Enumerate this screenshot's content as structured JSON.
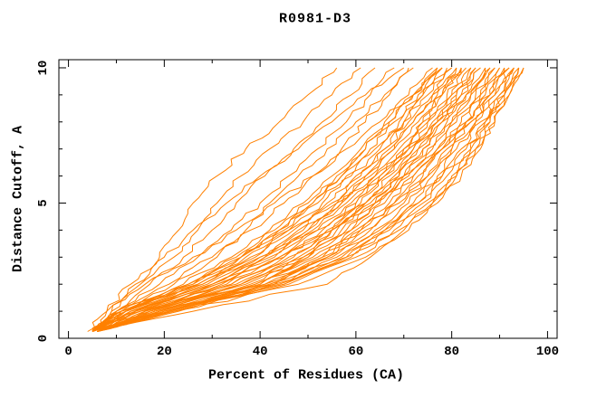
{
  "window": {
    "background": "#ffffff"
  },
  "chart_data": {
    "type": "line",
    "title": "R0981-D3",
    "xlabel": "Percent of Residues (CA)",
    "ylabel": "Distance Cutoff, A",
    "xlim": [
      -2,
      102
    ],
    "ylim": [
      0,
      10.3
    ],
    "x_major_ticks": [
      0,
      20,
      40,
      60,
      80,
      100
    ],
    "x_minor_ticks": [
      10,
      30,
      50,
      70,
      90
    ],
    "y_major_ticks": [
      0,
      5,
      10
    ],
    "y_minor_ticks": [
      1,
      2,
      3,
      4,
      6,
      7,
      8,
      9
    ],
    "grid": false,
    "legend": "none",
    "line_color": "#FF8000",
    "axis_color": "#000000",
    "cutoff_anchors": [
      0.25,
      1,
      2,
      3,
      4,
      5,
      6,
      7,
      8,
      9,
      10
    ],
    "curves_note": "Each curve lists Percent of Residues (CA) at each cutoff anchor above",
    "curves": [
      [
        5,
        10,
        24,
        34,
        42,
        49,
        55,
        61,
        66,
        71,
        76
      ],
      [
        5,
        10,
        25,
        35,
        43,
        50,
        56,
        62,
        67,
        72,
        77
      ],
      [
        5,
        11,
        25,
        36,
        44,
        51,
        57,
        62,
        67,
        72,
        77
      ],
      [
        5,
        11,
        26,
        36,
        44,
        51,
        57,
        63,
        68,
        73,
        78
      ],
      [
        5,
        11,
        27,
        37,
        45,
        52,
        58,
        64,
        69,
        74,
        78
      ],
      [
        5,
        12,
        28,
        38,
        46,
        53,
        59,
        65,
        70,
        74,
        79
      ],
      [
        5,
        12,
        28,
        39,
        47,
        54,
        60,
        66,
        70,
        75,
        80
      ],
      [
        5,
        13,
        29,
        40,
        48,
        55,
        61,
        66,
        71,
        76,
        80
      ],
      [
        5,
        13,
        30,
        41,
        49,
        56,
        62,
        67,
        72,
        76,
        81
      ],
      [
        5,
        13,
        30,
        41,
        50,
        57,
        62,
        68,
        72,
        77,
        81
      ],
      [
        5,
        14,
        31,
        42,
        50,
        57,
        63,
        68,
        73,
        78,
        82
      ],
      [
        5,
        14,
        31,
        43,
        51,
        58,
        64,
        69,
        74,
        78,
        82
      ],
      [
        5,
        15,
        32,
        44,
        52,
        59,
        65,
        70,
        75,
        79,
        83
      ],
      [
        5,
        15,
        33,
        45,
        53,
        60,
        66,
        71,
        75,
        80,
        84
      ],
      [
        5,
        15,
        34,
        45,
        54,
        61,
        66,
        72,
        76,
        80,
        84
      ],
      [
        6,
        16,
        34,
        46,
        55,
        62,
        67,
        72,
        77,
        81,
        85
      ],
      [
        6,
        16,
        35,
        47,
        55,
        62,
        68,
        73,
        78,
        82,
        86
      ],
      [
        6,
        16,
        36,
        48,
        56,
        63,
        69,
        74,
        78,
        82,
        86
      ],
      [
        6,
        17,
        36,
        49,
        57,
        64,
        70,
        74,
        79,
        83,
        87
      ],
      [
        6,
        17,
        37,
        49,
        58,
        65,
        70,
        75,
        80,
        84,
        87
      ],
      [
        6,
        17,
        38,
        50,
        59,
        66,
        71,
        76,
        80,
        84,
        88
      ],
      [
        6,
        18,
        39,
        51,
        60,
        67,
        72,
        77,
        81,
        85,
        89
      ],
      [
        6,
        18,
        39,
        52,
        61,
        68,
        73,
        78,
        82,
        86,
        89
      ],
      [
        6,
        19,
        40,
        53,
        61,
        68,
        74,
        78,
        83,
        86,
        90
      ],
      [
        6,
        19,
        41,
        54,
        62,
        69,
        75,
        79,
        83,
        87,
        90
      ],
      [
        6,
        19,
        41,
        54,
        63,
        70,
        75,
        80,
        84,
        88,
        91
      ],
      [
        6,
        20,
        42,
        55,
        64,
        71,
        76,
        80,
        85,
        88,
        91
      ],
      [
        6,
        20,
        42,
        56,
        65,
        72,
        77,
        81,
        85,
        89,
        92
      ],
      [
        6,
        21,
        43,
        57,
        66,
        73,
        78,
        82,
        86,
        90,
        93
      ],
      [
        6,
        21,
        44,
        58,
        66,
        73,
        78,
        83,
        87,
        90,
        93
      ],
      [
        6,
        21,
        45,
        58,
        67,
        74,
        79,
        84,
        87,
        91,
        94
      ],
      [
        6,
        22,
        45,
        59,
        68,
        75,
        80,
        84,
        88,
        91,
        94
      ],
      [
        6,
        22,
        46,
        60,
        69,
        76,
        81,
        85,
        89,
        92,
        95
      ],
      [
        5,
        11,
        26,
        36,
        46,
        56,
        64,
        71,
        77,
        83,
        88
      ],
      [
        6,
        19,
        40,
        50,
        55,
        60,
        65,
        70,
        74,
        78,
        82
      ],
      [
        5,
        14,
        30,
        44,
        55,
        64,
        72,
        78,
        84,
        89,
        93
      ],
      [
        6,
        20,
        43,
        53,
        59,
        64,
        69,
        73,
        77,
        81,
        85
      ],
      [
        5,
        12,
        27,
        40,
        52,
        62,
        70,
        77,
        83,
        88,
        92
      ],
      [
        4,
        8,
        13,
        19,
        23,
        26,
        31,
        37,
        44,
        50,
        56
      ],
      [
        5,
        9,
        15,
        22,
        27,
        31,
        36,
        42,
        49,
        55,
        61
      ],
      [
        5,
        10,
        17,
        24,
        30,
        35,
        41,
        47,
        53,
        59,
        64
      ],
      [
        5,
        10,
        19,
        27,
        34,
        40,
        46,
        52,
        58,
        63,
        68
      ],
      [
        5,
        11,
        21,
        30,
        38,
        45,
        51,
        57,
        62,
        67,
        71
      ],
      [
        5,
        9,
        14,
        20,
        26,
        33,
        40,
        48,
        55,
        62,
        70
      ],
      [
        6,
        12,
        22,
        31,
        37,
        42,
        48,
        54,
        60,
        66,
        72
      ],
      [
        5,
        8,
        16,
        26,
        35,
        43,
        51,
        58,
        65,
        72,
        78
      ],
      [
        6,
        23,
        48,
        62,
        71,
        77,
        82,
        86,
        89,
        92,
        95
      ],
      [
        6,
        26,
        54,
        63,
        70,
        76,
        81,
        85,
        88,
        91,
        94
      ]
    ]
  }
}
